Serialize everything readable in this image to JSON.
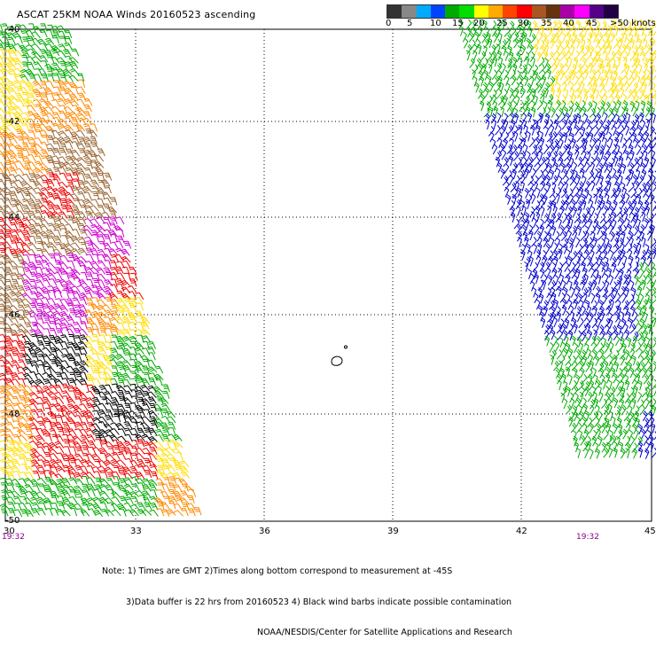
{
  "title": "ASCAT 25KM NOAA Winds 20160523 ascending",
  "colorbar": {
    "colors": [
      "#333333",
      "#888888",
      "#00aaff",
      "#0044ff",
      "#00aa00",
      "#00dd00",
      "#ffff00",
      "#ffaa00",
      "#ff4400",
      "#ff0000",
      "#aa5522",
      "#663311",
      "#aa00aa",
      "#ff00ff",
      "#550088",
      "#220044"
    ],
    "labels": [
      "0",
      "5",
      "10",
      "15",
      "20",
      "25",
      "30",
      "35",
      "40",
      "45",
      ">50 knots"
    ]
  },
  "lat_labels": [
    "-40",
    "-42",
    "-44",
    "-46",
    "-48",
    "-50"
  ],
  "lon_labels": [
    "30",
    "33",
    "36",
    "39",
    "42",
    "45"
  ],
  "times": [
    "19:32",
    "19:32"
  ],
  "notes": [
    "Note: 1) Times are GMT 2)Times along bottom correspond to measurement at -45S",
    "3)Data buffer is 22 hrs from 20160523 4) Black wind barbs indicate possible contamination",
    "NOAA/NESDIS/Center for Satellite Applications and Research"
  ],
  "barb_colors": {
    "green": "#00aa00",
    "yellow": "#ffdd00",
    "orange": "#ff8800",
    "red": "#ee0000",
    "brown": "#996633",
    "magenta": "#cc00cc",
    "black": "#000000",
    "blue": "#0000cc"
  }
}
